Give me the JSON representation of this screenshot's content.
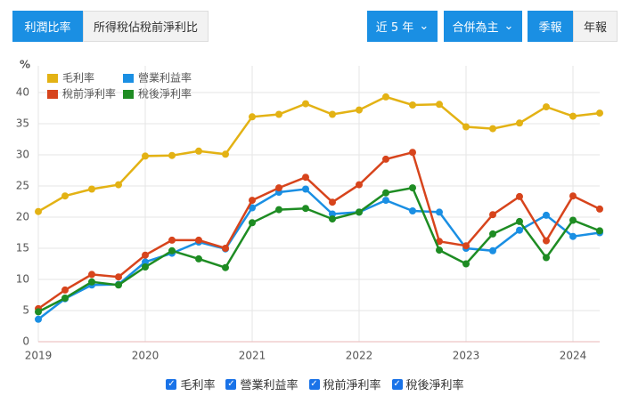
{
  "toolbar": {
    "tabs": [
      "利潤比率",
      "所得稅佔稅前淨利比"
    ],
    "period": "近 5 年",
    "consolidation": "合併為主",
    "frequency": [
      "季報",
      "年報"
    ]
  },
  "chart_data": {
    "type": "line",
    "y_label": "%",
    "x": [
      2019,
      2019.25,
      2019.5,
      2019.75,
      2020,
      2020.25,
      2020.5,
      2020.75,
      2021,
      2021.25,
      2021.5,
      2021.75,
      2022,
      2022.25,
      2022.5,
      2022.75,
      2023,
      2023.25,
      2023.5,
      2023.75,
      2024,
      2024.25
    ],
    "xlim": [
      2019,
      2024.25
    ],
    "xticks": [
      2019,
      2020,
      2021,
      2022,
      2023,
      2024
    ],
    "ylim": [
      0,
      40
    ],
    "yticks": [
      0,
      5,
      10,
      15,
      20,
      25,
      30,
      35,
      40
    ],
    "grid": true,
    "series": [
      {
        "name": "毛利率",
        "color": "#e3b214",
        "values": [
          20.9,
          23.4,
          24.5,
          25.2,
          29.8,
          29.9,
          30.6,
          30.1,
          36.1,
          36.5,
          38.2,
          36.5,
          37.2,
          39.3,
          38.0,
          38.1,
          34.5,
          34.2,
          35.1,
          37.7,
          36.2,
          36.7
        ]
      },
      {
        "name": "營業利益率",
        "color": "#1a8fe3",
        "values": [
          3.6,
          6.9,
          9.1,
          9.2,
          12.8,
          14.2,
          16.0,
          14.9,
          21.5,
          24.0,
          24.5,
          20.5,
          20.8,
          22.7,
          21.0,
          20.8,
          15.0,
          14.6,
          17.9,
          20.3,
          16.9,
          17.5
        ]
      },
      {
        "name": "稅前淨利率",
        "color": "#d7441c",
        "values": [
          5.3,
          8.3,
          10.8,
          10.4,
          13.9,
          16.3,
          16.3,
          15.0,
          22.7,
          24.7,
          26.4,
          22.4,
          25.2,
          29.3,
          30.4,
          16.1,
          15.4,
          20.4,
          23.3,
          16.2,
          23.4,
          21.3
        ]
      },
      {
        "name": "稅後淨利率",
        "color": "#1e8c23",
        "values": [
          4.8,
          7.0,
          9.6,
          9.1,
          12.0,
          14.6,
          13.3,
          11.9,
          19.1,
          21.2,
          21.4,
          19.7,
          20.8,
          23.9,
          24.7,
          14.7,
          12.5,
          17.3,
          19.3,
          13.5,
          19.5,
          17.8
        ]
      }
    ]
  }
}
